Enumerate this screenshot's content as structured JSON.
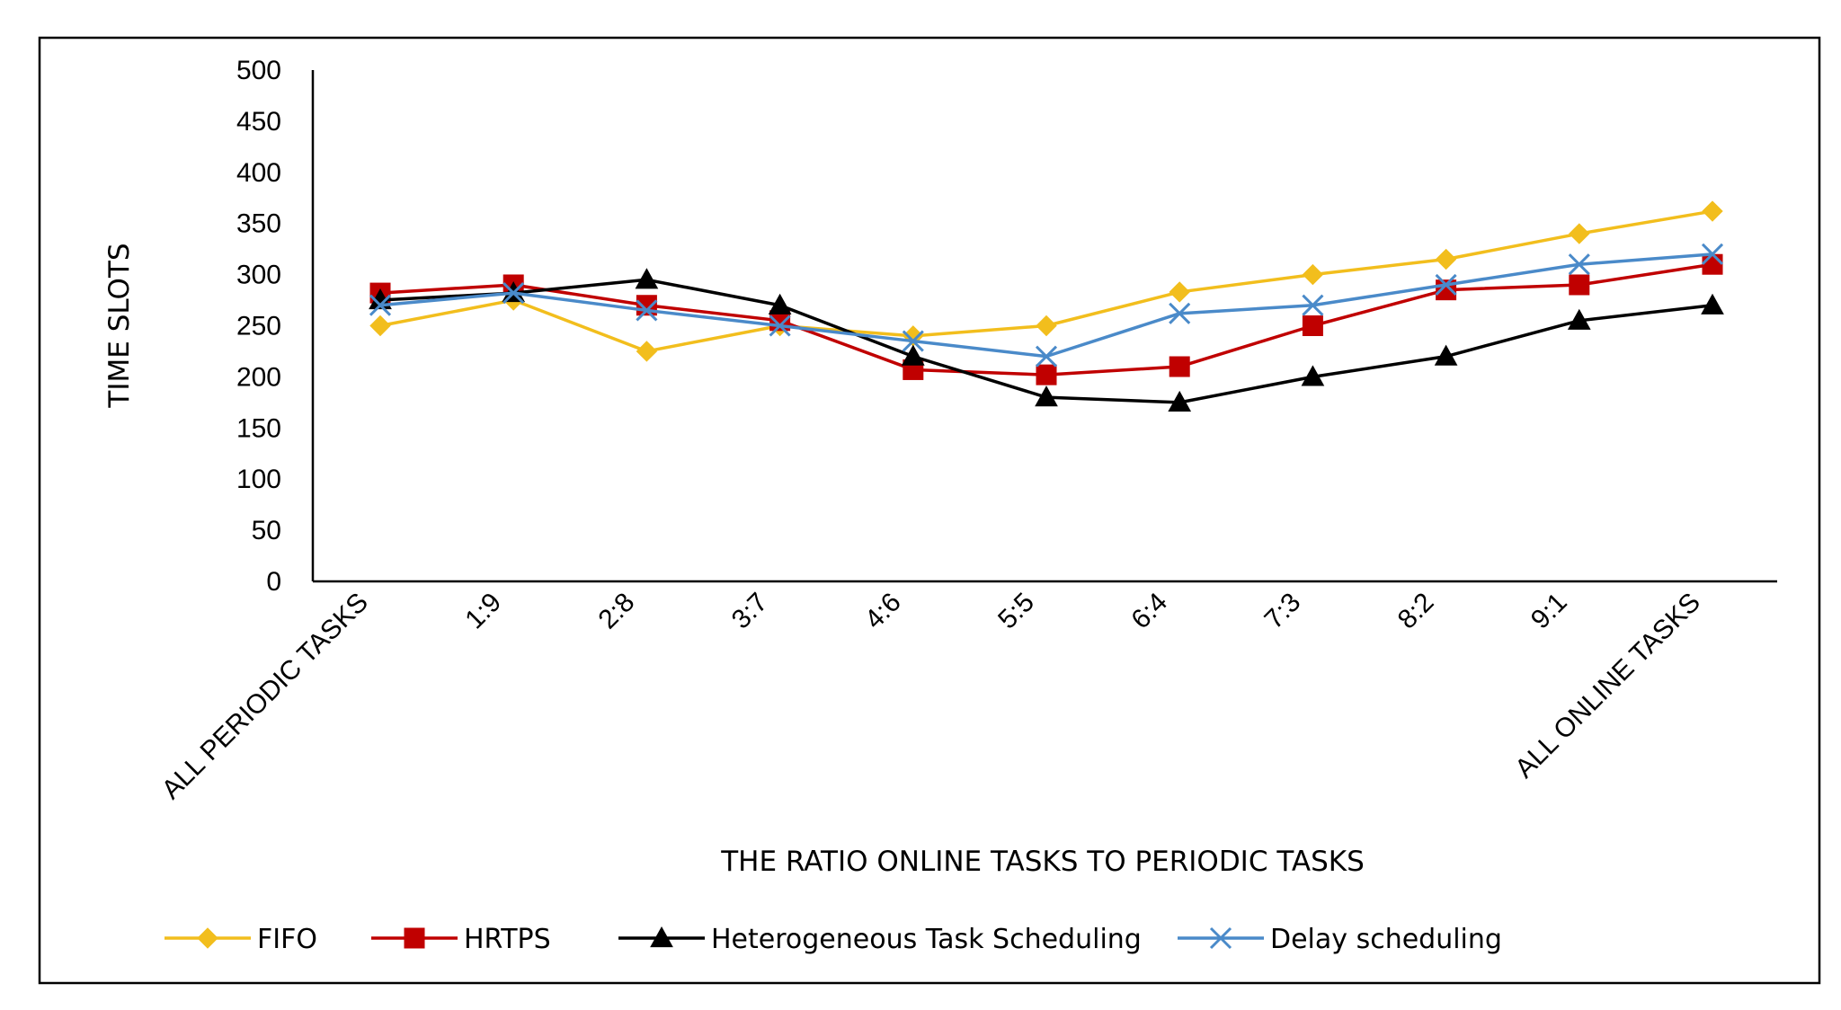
{
  "chart_data": {
    "type": "line",
    "title": "",
    "xlabel": "THE RATIO ONLINE TASKS TO PERIODIC TASKS",
    "ylabel": "TIME SLOTS",
    "categories": [
      "ALL PERIODIC TASKS",
      "1:9",
      "2:8",
      "3:7",
      "4:6",
      "5:5",
      "6:4",
      "7:3",
      "8:2",
      "9:1",
      "ALL ONLINE TASKS"
    ],
    "ylim": [
      0,
      500
    ],
    "yticks": [
      0,
      50,
      100,
      150,
      200,
      250,
      300,
      350,
      400,
      450,
      500
    ],
    "grid": false,
    "legend_position": "bottom",
    "series": [
      {
        "name": "FIFO",
        "color": "#f2be1d",
        "marker": "diamond",
        "values": [
          250,
          275,
          225,
          250,
          240,
          250,
          283,
          300,
          315,
          340,
          362
        ]
      },
      {
        "name": "HRTPS",
        "color": "#c00000",
        "marker": "square",
        "values": [
          282,
          290,
          270,
          255,
          207,
          202,
          210,
          250,
          285,
          290,
          310
        ]
      },
      {
        "name": "Heterogeneous Task Scheduling",
        "color": "#000000",
        "marker": "triangle",
        "values": [
          275,
          282,
          295,
          270,
          220,
          180,
          175,
          200,
          220,
          255,
          270
        ]
      },
      {
        "name": "Delay scheduling",
        "color": "#4a8ac9",
        "marker": "x",
        "values": [
          270,
          282,
          265,
          250,
          235,
          220,
          262,
          270,
          290,
          310,
          320
        ]
      }
    ]
  }
}
